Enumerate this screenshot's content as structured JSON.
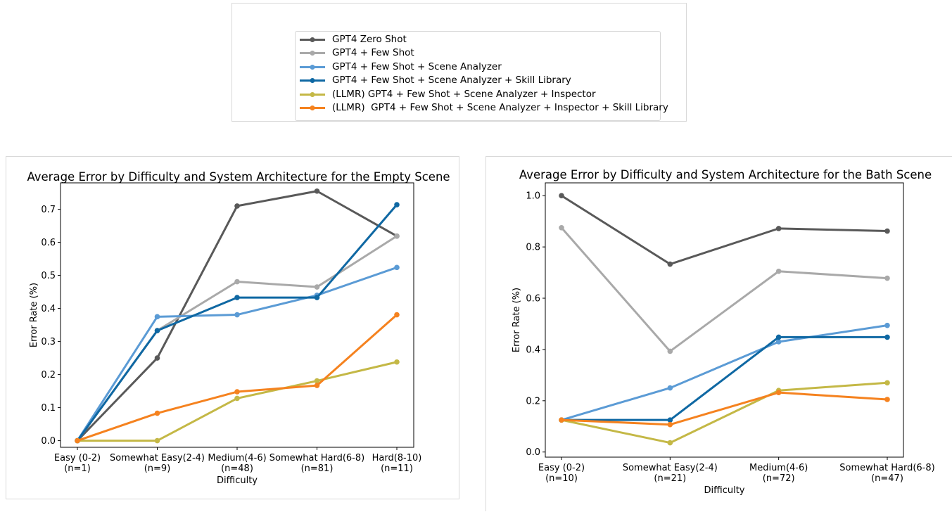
{
  "legend": {
    "items": [
      {
        "label": "GPT4 Zero Shot",
        "color": "#595959"
      },
      {
        "label": "GPT4 + Few Shot",
        "color": "#a9a9a9"
      },
      {
        "label": "GPT4 + Few Shot + Scene Analyzer",
        "color": "#5b9bd5"
      },
      {
        "label": "GPT4 + Few Shot + Scene Analyzer + Skill Library",
        "color": "#0f68a3"
      },
      {
        "label": "(LLMR) GPT4 + Few Shot + Scene Analyzer + Inspector",
        "color": "#c4b846"
      },
      {
        "label": "(LLMR)  GPT4 + Few Shot + Scene Analyzer + Inspector + Skill Library",
        "color": "#f5821f"
      }
    ]
  },
  "chart_data": [
    {
      "type": "line",
      "title": "Average Error by Difficulty and System Architecture for the Empty Scene",
      "xlabel": "Difficulty",
      "ylabel": "Error Rate (%)",
      "categories": [
        "Easy (0-2)\n(n=1)",
        "Somewhat Easy(2-4)\n(n=9)",
        "Medium(4-6)\n(n=48)",
        "Somewhat Hard(6-8)\n(n=81)",
        "Hard(8-10)\n(n=11)"
      ],
      "ylim": [
        -0.02,
        0.78
      ],
      "yticks": [
        0.0,
        0.1,
        0.2,
        0.3,
        0.4,
        0.5,
        0.6,
        0.7
      ],
      "ytick_labels": [
        "0.0",
        "0.1",
        "0.2",
        "0.3",
        "0.4",
        "0.5",
        "0.6",
        "0.7"
      ],
      "grid": false,
      "series": [
        {
          "name": "GPT4 Zero Shot",
          "color": "#595959",
          "values": [
            0.0,
            0.25,
            0.71,
            0.755,
            0.619
          ]
        },
        {
          "name": "GPT4 + Few Shot",
          "color": "#a9a9a9",
          "values": [
            0.0,
            0.333,
            0.481,
            0.465,
            0.619
          ]
        },
        {
          "name": "GPT4 + Few Shot + Scene Analyzer",
          "color": "#5b9bd5",
          "values": [
            0.0,
            0.375,
            0.381,
            0.44,
            0.524
          ]
        },
        {
          "name": "GPT4 + Few Shot + Scene Analyzer + Skill Library",
          "color": "#0f68a3",
          "values": [
            0.0,
            0.333,
            0.433,
            0.433,
            0.714
          ]
        },
        {
          "name": "(LLMR) GPT4 + Few Shot + Scene Analyzer + Inspector",
          "color": "#c4b846",
          "values": [
            0.0,
            0.0,
            0.128,
            0.181,
            0.238
          ]
        },
        {
          "name": "(LLMR)  GPT4 + Few Shot + Scene Analyzer + Inspector + Skill Library",
          "color": "#f5821f",
          "values": [
            0.0,
            0.083,
            0.148,
            0.167,
            0.381
          ]
        }
      ]
    },
    {
      "type": "line",
      "title": "Average Error by Difficulty and System Architecture for the Bath Scene",
      "xlabel": "Difficulty",
      "ylabel": "Error Rate (%)",
      "categories": [
        "Easy (0-2)\n(n=10)",
        "Somewhat Easy(2-4)\n(n=21)",
        "Medium(4-6)\n(n=72)",
        "Somewhat Hard(6-8)\n(n=47)"
      ],
      "ylim": [
        -0.02,
        1.05
      ],
      "yticks": [
        0.0,
        0.2,
        0.4,
        0.6,
        0.8,
        1.0
      ],
      "ytick_labels": [
        "0.0",
        "0.2",
        "0.4",
        "0.6",
        "0.8",
        "1.0"
      ],
      "grid": false,
      "series": [
        {
          "name": "GPT4 Zero Shot",
          "color": "#595959",
          "values": [
            1.0,
            0.733,
            0.872,
            0.862
          ]
        },
        {
          "name": "GPT4 + Few Shot",
          "color": "#a9a9a9",
          "values": [
            0.875,
            0.393,
            0.705,
            0.678
          ]
        },
        {
          "name": "GPT4 + Few Shot + Scene Analyzer",
          "color": "#5b9bd5",
          "values": [
            0.125,
            0.25,
            0.43,
            0.494
          ]
        },
        {
          "name": "GPT4 + Few Shot + Scene Analyzer + Skill Library",
          "color": "#0f68a3",
          "values": [
            0.125,
            0.125,
            0.448,
            0.448
          ]
        },
        {
          "name": "(LLMR) GPT4 + Few Shot + Scene Analyzer + Inspector",
          "color": "#c4b846",
          "values": [
            0.125,
            0.036,
            0.24,
            0.27
          ]
        },
        {
          "name": "(LLMR)  GPT4 + Few Shot + Scene Analyzer + Inspector + Skill Library",
          "color": "#f5821f",
          "values": [
            0.125,
            0.107,
            0.232,
            0.205
          ]
        }
      ]
    }
  ]
}
